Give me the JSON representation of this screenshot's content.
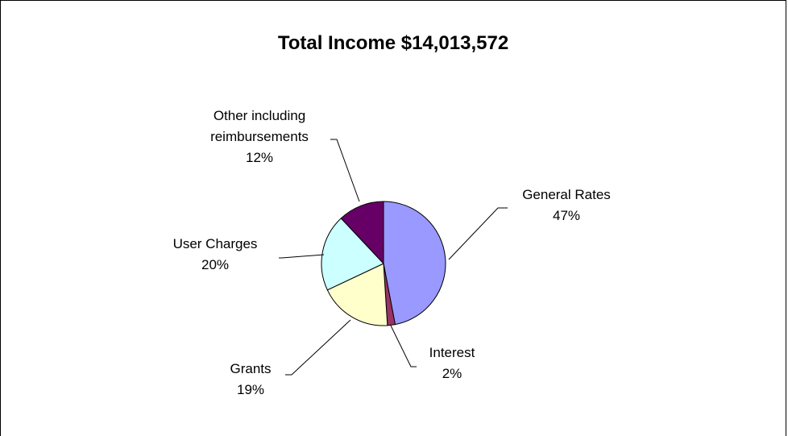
{
  "chart_data": {
    "type": "pie",
    "title": "Total Income $14,013,572",
    "slices": [
      {
        "label_lines": [
          "General Rates"
        ],
        "pct_label": "47%",
        "value": 47,
        "color": "#9999FF"
      },
      {
        "label_lines": [
          "Interest"
        ],
        "pct_label": "2%",
        "value": 2,
        "color": "#993366"
      },
      {
        "label_lines": [
          "Grants"
        ],
        "pct_label": "19%",
        "value": 19,
        "color": "#FFFFCC"
      },
      {
        "label_lines": [
          "User Charges"
        ],
        "pct_label": "20%",
        "value": 20,
        "color": "#CCFFFF"
      },
      {
        "label_lines": [
          "Other including",
          "reimbursements"
        ],
        "pct_label": "12%",
        "value": 12,
        "color": "#660066"
      }
    ],
    "start_angle_deg": 0,
    "direction": "clockwise",
    "legend": "none"
  }
}
